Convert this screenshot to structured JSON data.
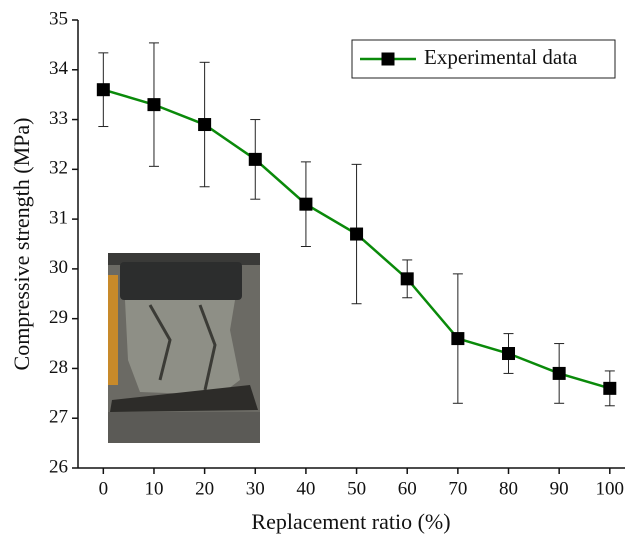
{
  "chart_data": {
    "type": "line",
    "xlabel": "Replacement ratio (%)",
    "ylabel": "Compressive strength (MPa)",
    "x": [
      0,
      10,
      20,
      30,
      40,
      50,
      60,
      70,
      80,
      90,
      100
    ],
    "series": [
      {
        "name": "Experimental data",
        "color": "#0a8a0a",
        "values": [
          33.6,
          33.3,
          32.9,
          32.2,
          31.3,
          30.7,
          29.8,
          28.6,
          28.3,
          27.9,
          27.6
        ],
        "errors": [
          0.74,
          1.24,
          1.25,
          0.8,
          0.85,
          1.4,
          0.38,
          1.3,
          0.4,
          0.6,
          0.35
        ]
      }
    ],
    "xlim": [
      -5,
      103
    ],
    "ylim": [
      26,
      35
    ],
    "xticks": [
      0,
      10,
      20,
      30,
      40,
      50,
      60,
      70,
      80,
      90,
      100
    ],
    "yticks": [
      26,
      27,
      28,
      29,
      30,
      31,
      32,
      33,
      34,
      35
    ],
    "legend": "top-right"
  }
}
